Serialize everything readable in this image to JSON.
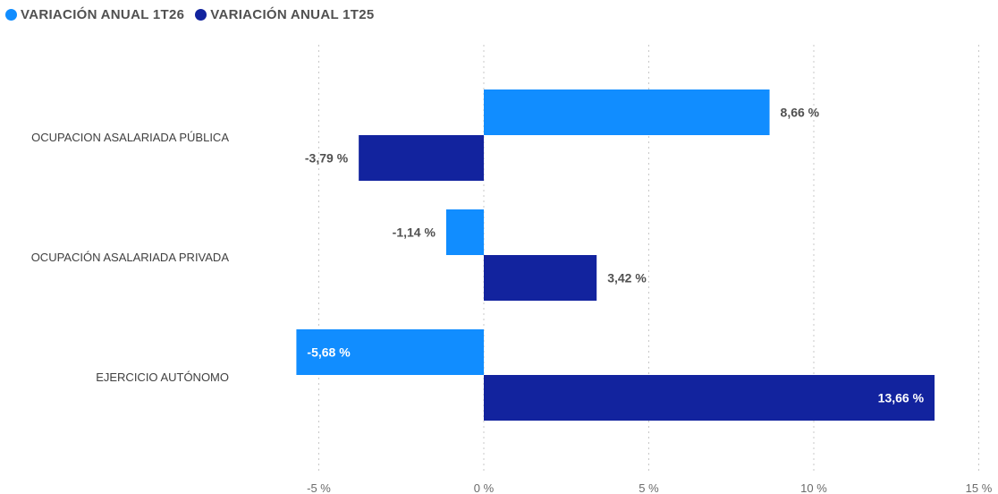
{
  "chart_data": {
    "type": "bar",
    "orientation": "horizontal",
    "categories": [
      "OCUPACION ASALARIADA PÚBLICA",
      "OCUPACIÓN ASALARIADA PRIVADA",
      "EJERCICIO AUTÓNOMO"
    ],
    "series": [
      {
        "name": "VARIACIÓN ANUAL 1T26",
        "color": "#118dff",
        "values": [
          8.66,
          -1.14,
          -5.68
        ],
        "labels": [
          "8,66 %",
          "-1,14 %",
          "-5,68 %"
        ]
      },
      {
        "name": "VARIACIÓN ANUAL 1T25",
        "color": "#12239e",
        "values": [
          -3.79,
          3.42,
          13.66
        ],
        "labels": [
          "-3,79 %",
          "3,42 %",
          "13,66 %"
        ]
      }
    ],
    "xlim": [
      -5,
      15
    ],
    "xticks": [
      -5,
      0,
      5,
      10,
      15
    ],
    "xtick_labels": [
      "-5 %",
      "0 %",
      "5 %",
      "10 %",
      "15 %"
    ],
    "grid": "vertical-dotted",
    "legend_position": "top-left"
  }
}
